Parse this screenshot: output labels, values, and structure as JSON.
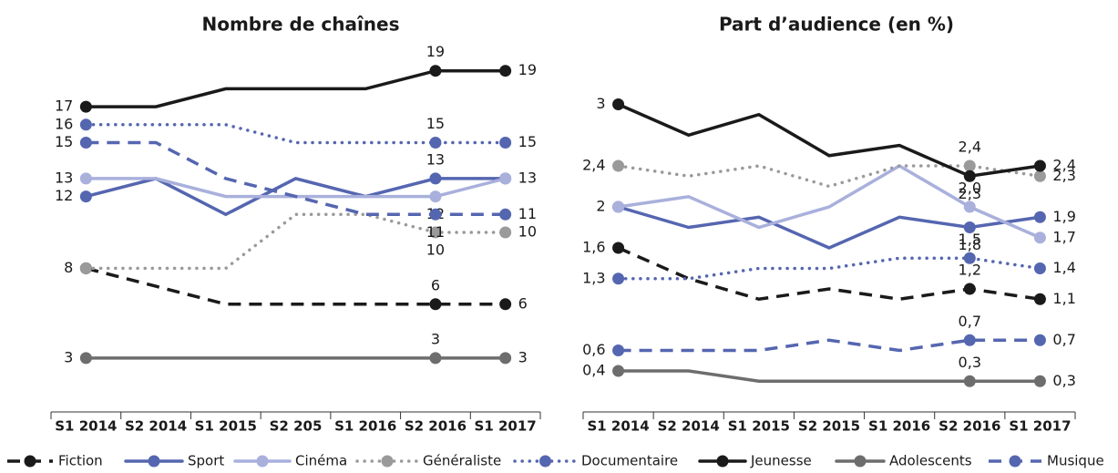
{
  "chart_data": [
    {
      "type": "line",
      "title": "Nombre de chaînes",
      "categories": [
        "S1 2014",
        "S2 2014",
        "S1 2015",
        "S2 205",
        "S1 2016",
        "S2 2016",
        "S1 2017"
      ],
      "ylim": [
        0,
        20
      ],
      "series": [
        {
          "name": "Fiction",
          "color": "#1a1a1a",
          "dash": "dashed",
          "values": [
            8,
            7,
            6,
            6,
            6,
            6,
            6
          ],
          "value_labels": [
            "8",
            null,
            null,
            null,
            null,
            "6",
            "6"
          ]
        },
        {
          "name": "Sport",
          "color": "#5566b0",
          "dash": "solid",
          "values": [
            12,
            13,
            11,
            13,
            12,
            13,
            13
          ],
          "value_labels": [
            "12",
            null,
            null,
            null,
            null,
            "13",
            "13"
          ]
        },
        {
          "name": "Cinéma",
          "color": "#a9b0dc",
          "dash": "solid",
          "values": [
            13,
            13,
            12,
            12,
            12,
            12,
            13
          ],
          "value_labels": [
            "13",
            null,
            null,
            null,
            null,
            "12",
            null
          ]
        },
        {
          "name": "Généraliste",
          "color": "#9a9a9a",
          "dash": "dotted",
          "values": [
            8,
            8,
            8,
            11,
            11,
            10,
            10
          ],
          "value_labels": [
            null,
            null,
            null,
            null,
            null,
            "10",
            "10"
          ]
        },
        {
          "name": "Documentaire",
          "color": "#5566b0",
          "dash": "dotted",
          "values": [
            16,
            16,
            16,
            15,
            15,
            15,
            15
          ],
          "value_labels": [
            "16",
            null,
            null,
            null,
            null,
            "15",
            "15"
          ]
        },
        {
          "name": "Jeunesse",
          "color": "#1a1a1a",
          "dash": "solid",
          "values": [
            17,
            17,
            18,
            18,
            18,
            19,
            19
          ],
          "value_labels": [
            "17",
            null,
            null,
            null,
            null,
            "19",
            "19"
          ]
        },
        {
          "name": "Adolescents",
          "color": "#6d6d6d",
          "dash": "solid",
          "values": [
            3,
            3,
            3,
            3,
            3,
            3,
            3
          ],
          "value_labels": [
            "3",
            null,
            null,
            null,
            null,
            "3",
            "3"
          ]
        },
        {
          "name": "Musique",
          "color": "#5566b0",
          "dash": "dashed",
          "values": [
            15,
            15,
            13,
            12,
            11,
            11,
            11
          ],
          "value_labels": [
            "15",
            null,
            null,
            null,
            null,
            "11",
            "11"
          ]
        }
      ]
    },
    {
      "type": "line",
      "title": "Part d’audience (en %)",
      "categories": [
        "S1 2014",
        "S2 2014",
        "S1 2015",
        "S2 2015",
        "S1 2016",
        "S2 2016",
        "S1 2017"
      ],
      "ylim": [
        0,
        3.2
      ],
      "series": [
        {
          "color": "#1a1a1a",
          "dash": "dashed",
          "values": [
            1.6,
            1.3,
            1.1,
            1.2,
            1.1,
            1.2,
            1.1
          ],
          "value_labels": [
            "1,6",
            null,
            null,
            null,
            null,
            "1,2",
            "1,1"
          ]
        },
        {
          "color": "#5566b0",
          "dash": "solid",
          "values": [
            2.0,
            1.8,
            1.9,
            1.6,
            1.9,
            1.8,
            1.9
          ],
          "value_labels": [
            "2",
            null,
            null,
            null,
            null,
            "1,8",
            "1,9"
          ]
        },
        {
          "color": "#a9b0dc",
          "dash": "solid",
          "values": [
            2.0,
            2.1,
            1.8,
            2.0,
            2.4,
            2.0,
            1.7
          ],
          "value_labels": [
            null,
            null,
            null,
            null,
            null,
            "2,0",
            "1,7"
          ]
        },
        {
          "color": "#9a9a9a",
          "dash": "dotted",
          "values": [
            2.4,
            2.3,
            2.4,
            2.2,
            2.4,
            2.4,
            2.3
          ],
          "value_labels": [
            "2,4",
            null,
            null,
            null,
            null,
            "2,4",
            "2,3"
          ]
        },
        {
          "color": "#5566b0",
          "dash": "dotted",
          "values": [
            1.3,
            1.3,
            1.4,
            1.4,
            1.5,
            1.5,
            1.4
          ],
          "value_labels": [
            "1,3",
            null,
            null,
            null,
            null,
            "1,5",
            "1,4"
          ]
        },
        {
          "color": "#1a1a1a",
          "dash": "solid",
          "values": [
            3,
            2.7,
            2.9,
            2.5,
            2.6,
            2.3,
            2.4
          ],
          "value_labels": [
            "3",
            null,
            null,
            null,
            null,
            "2,3",
            "2,4"
          ]
        },
        {
          "color": "#6d6d6d",
          "dash": "solid",
          "values": [
            0.4,
            0.4,
            0.3,
            0.3,
            0.3,
            0.3,
            0.3
          ],
          "value_labels": [
            "0,4",
            null,
            null,
            null,
            null,
            "0,3",
            "0,3"
          ]
        },
        {
          "color": "#5566b0",
          "dash": "dashed",
          "values": [
            0.6,
            0.6,
            0.6,
            0.7,
            0.6,
            0.7,
            0.7
          ],
          "value_labels": [
            "0,6",
            null,
            null,
            null,
            null,
            "0,7",
            "0,7"
          ]
        }
      ]
    }
  ]
}
